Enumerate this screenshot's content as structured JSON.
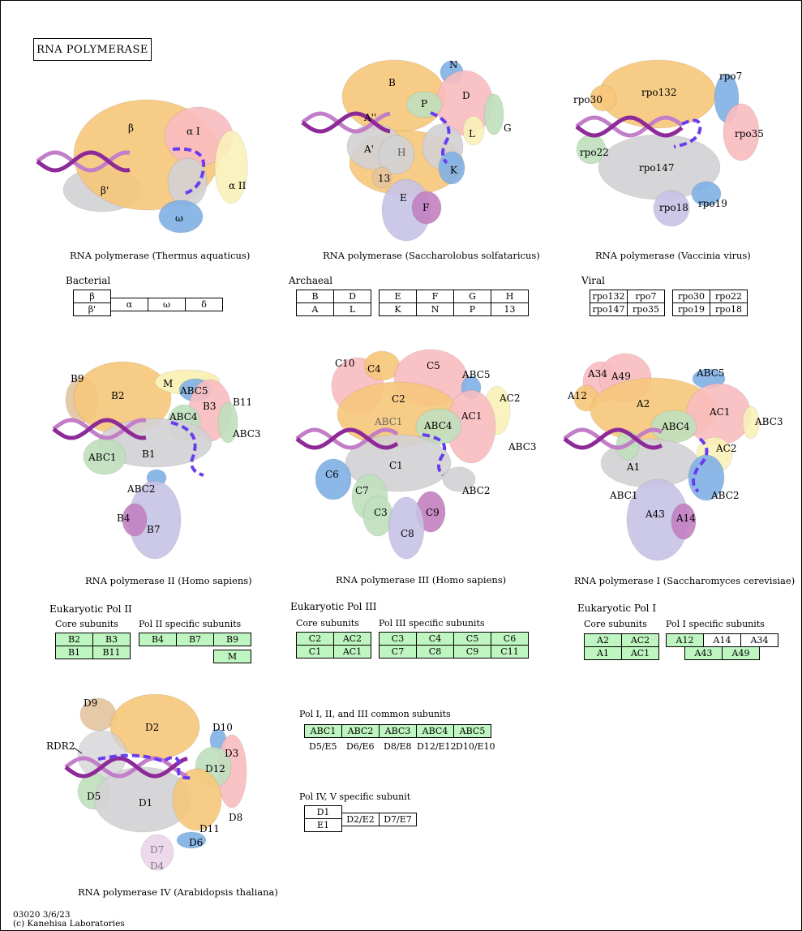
{
  "title": "RNA POLYMERASE",
  "footer": {
    "map_id_date": "03020 3/6/23",
    "copyright": "(c) Kanehisa Laboratories"
  },
  "colors": {
    "dna_dark": "#8e2a98",
    "dna_light": "#c27ec7",
    "rna": "#6a3cf0",
    "gene_box_fill": "#bff5c0",
    "subunit_orange": "#f6c77a",
    "subunit_pink": "#f8bcc0",
    "subunit_grey": "#d2d2d4",
    "subunit_yellow": "#f9f1b8",
    "subunit_blue": "#7fb0e6",
    "subunit_green": "#bfe0bd",
    "subunit_lavender": "#c7c2e6",
    "subunit_purple": "#c27fc1",
    "subunit_tan": "#e3c49e"
  },
  "panels": {
    "bacterial": {
      "caption": "RNA polymerase (Thermus aquaticus)",
      "table_label": "Bacterial",
      "labels": [
        "β",
        "α I",
        "β'",
        "α II",
        "ω"
      ],
      "boxes": [
        "β",
        "β'",
        "α",
        "ω",
        "δ"
      ]
    },
    "archaeal": {
      "caption": "RNA polymerase (Saccharolobus solfataricus)",
      "table_label": "Archaeal",
      "labels": [
        "N",
        "B",
        "D",
        "P",
        "A''",
        "G",
        "L",
        "A'",
        "H",
        "K",
        "13",
        "E",
        "F"
      ],
      "boxes": [
        "B",
        "D",
        "A",
        "L",
        "E",
        "F",
        "G",
        "H",
        "K",
        "N",
        "P",
        "13"
      ]
    },
    "viral": {
      "caption": "RNA polymerase (Vaccinia virus)",
      "table_label": "Viral",
      "labels": [
        "rpo7",
        "rpo132",
        "rpo30",
        "rpo35",
        "rpo22",
        "rpo147",
        "rpo19",
        "rpo18"
      ],
      "boxes": [
        "rpo132",
        "rpo7",
        "rpo147",
        "rpo35",
        "rpo30",
        "rpo22",
        "rpo19",
        "rpo18"
      ]
    },
    "pol2": {
      "caption": "RNA polymerase II (Homo sapiens)",
      "table_label": "Eukaryotic Pol II",
      "core_label": "Core subunits",
      "specific_label": "Pol II specific subunits",
      "labels": [
        "B9",
        "M",
        "B2",
        "ABC5",
        "B11",
        "B3",
        "ABC4",
        "ABC3",
        "ABC1",
        "B1",
        "ABC2",
        "B4",
        "B7"
      ],
      "core": [
        "B2",
        "B3",
        "B1",
        "B11"
      ],
      "specific": [
        "B4",
        "B7",
        "B9",
        "M"
      ]
    },
    "pol3": {
      "caption": "RNA polymerase III (Homo sapiens)",
      "table_label": "Eukaryotic Pol III",
      "core_label": "Core subunits",
      "specific_label": "Pol III specific subunits",
      "labels": [
        "C10",
        "C4",
        "C5",
        "ABC5",
        "AC2",
        "C2",
        "AC1",
        "ABC1",
        "ABC4",
        "ABC3",
        "C1",
        "C6",
        "ABC2",
        "C7",
        "C3",
        "C9",
        "C8"
      ],
      "core": [
        "C2",
        "AC2",
        "C1",
        "AC1"
      ],
      "specific": [
        "C3",
        "C4",
        "C5",
        "C6",
        "C7",
        "C8",
        "C9",
        "C11"
      ]
    },
    "pol1": {
      "caption": "RNA polymerase I (Saccharomyces cerevisiae)",
      "table_label": "Eukaryotic Pol I",
      "core_label": "Core subunits",
      "specific_label": "Pol I specific subunits",
      "labels": [
        "A34",
        "A49",
        "ABC5",
        "A12",
        "A2",
        "AC1",
        "ABC3",
        "ABC4",
        "AC2",
        "A1",
        "ABC1",
        "ABC2",
        "A43",
        "A14"
      ],
      "core": [
        "A2",
        "AC2",
        "A1",
        "AC1"
      ],
      "specific": [
        "A12",
        "A14",
        "A34",
        "A43",
        "A49"
      ]
    },
    "pol4": {
      "caption": "RNA polymerase IV (Arabidopsis thaliana)",
      "labels": [
        "D9",
        "D2",
        "D10",
        "RDR2",
        "D3",
        "D12",
        "D5",
        "D1",
        "D8",
        "D11",
        "D6",
        "D7",
        "D4"
      ]
    }
  },
  "common": {
    "title": "Pol I, II, and III common subunits",
    "boxes": [
      "ABC1",
      "ABC2",
      "ABC3",
      "ABC4",
      "ABC5"
    ],
    "homologs": [
      "D5/E5",
      "D6/E6",
      "D8/E8",
      "D12/E12",
      "D10/E10"
    ]
  },
  "pol45": {
    "title": "Pol IV, V specific subunit",
    "boxes": [
      "D1",
      "E1",
      "D2/E2",
      "D7/E7"
    ]
  }
}
